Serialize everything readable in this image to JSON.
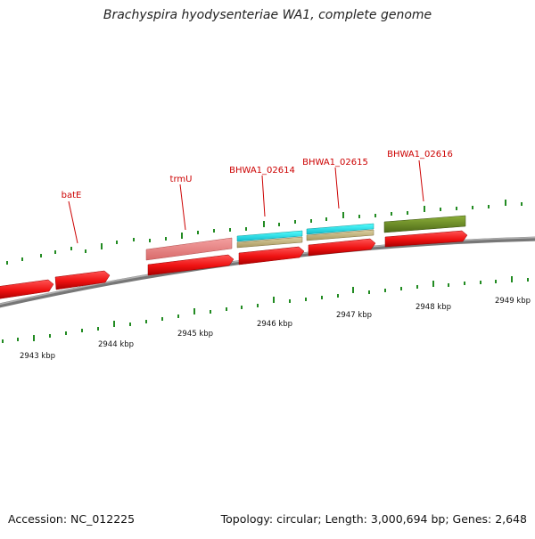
{
  "title": "Brachyspira hyodysenteriae WA1, complete genome",
  "footer": {
    "accession": "Accession: NC_012225",
    "summary": "Topology: circular; Length: 3,000,694 bp; Genes: 2,648"
  },
  "colors": {
    "cds": "#ee1111",
    "trna": "#e88080",
    "gene_cyan": "#22dddd",
    "gene_tan": "#c8b888",
    "gene_olive": "#6b8e23",
    "backbone": "#808080",
    "tick": "#228b22",
    "label": "#cc0000"
  },
  "scale": {
    "unit": "kbp",
    "major_ticks": [
      {
        "kbp": 2943,
        "label": "2943 kbp"
      },
      {
        "kbp": 2944,
        "label": "2944 kbp"
      },
      {
        "kbp": 2945,
        "label": "2945 kbp"
      },
      {
        "kbp": 2946,
        "label": "2946 kbp"
      },
      {
        "kbp": 2947,
        "label": "2947 kbp"
      },
      {
        "kbp": 2948,
        "label": "2948 kbp"
      },
      {
        "kbp": 2949,
        "label": "2949 kbp"
      }
    ]
  },
  "gene_labels": [
    {
      "name": "batE"
    },
    {
      "name": "trmU"
    },
    {
      "name": "BHWA1_02614"
    },
    {
      "name": "BHWA1_02615"
    },
    {
      "name": "BHWA1_02616"
    }
  ]
}
